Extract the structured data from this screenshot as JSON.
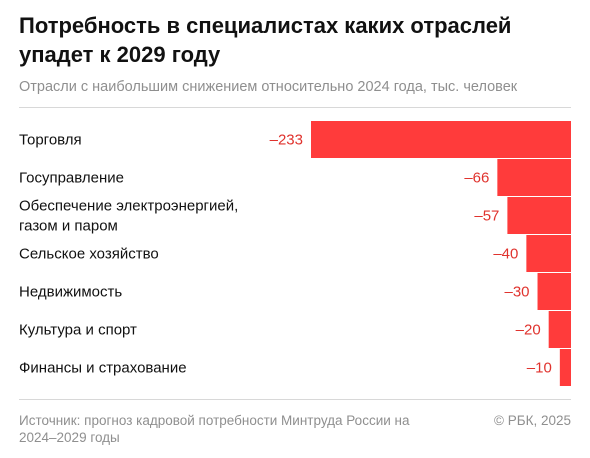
{
  "title": "Потребность в специалистах каких отраслей упадет к 2029 году",
  "subtitle": "Отрасли с наибольшим снижением относительно 2024 года, тыс. человек",
  "source": "Источник: прогноз кадровой потребности Минтруда России на 2024–2029 годы",
  "credit": "© РБК, 2025",
  "colors": {
    "bar": "#ff3b3b",
    "value_text": "#e0332e",
    "text": "#111111",
    "muted": "#8f8f8f"
  },
  "chart_data": {
    "type": "bar",
    "orientation": "horizontal",
    "categories": [
      [
        "Торговля"
      ],
      [
        "Госуправление"
      ],
      [
        "Обеспечение электроэнергией,",
        "газом и паром"
      ],
      [
        "Сельское хозяйство"
      ],
      [
        "Недвижимость"
      ],
      [
        "Культура и спорт"
      ],
      [
        "Финансы и страхование"
      ]
    ],
    "values": [
      -233,
      -66,
      -57,
      -40,
      -30,
      -20,
      -10
    ],
    "value_labels": [
      "–233",
      "–66",
      "–57",
      "–40",
      "–30",
      "–20",
      "–10"
    ],
    "title": "Потребность в специалистах каких отраслей упадет к 2029 году",
    "xlabel": "",
    "ylabel": "",
    "xlim": [
      -233,
      0
    ]
  }
}
